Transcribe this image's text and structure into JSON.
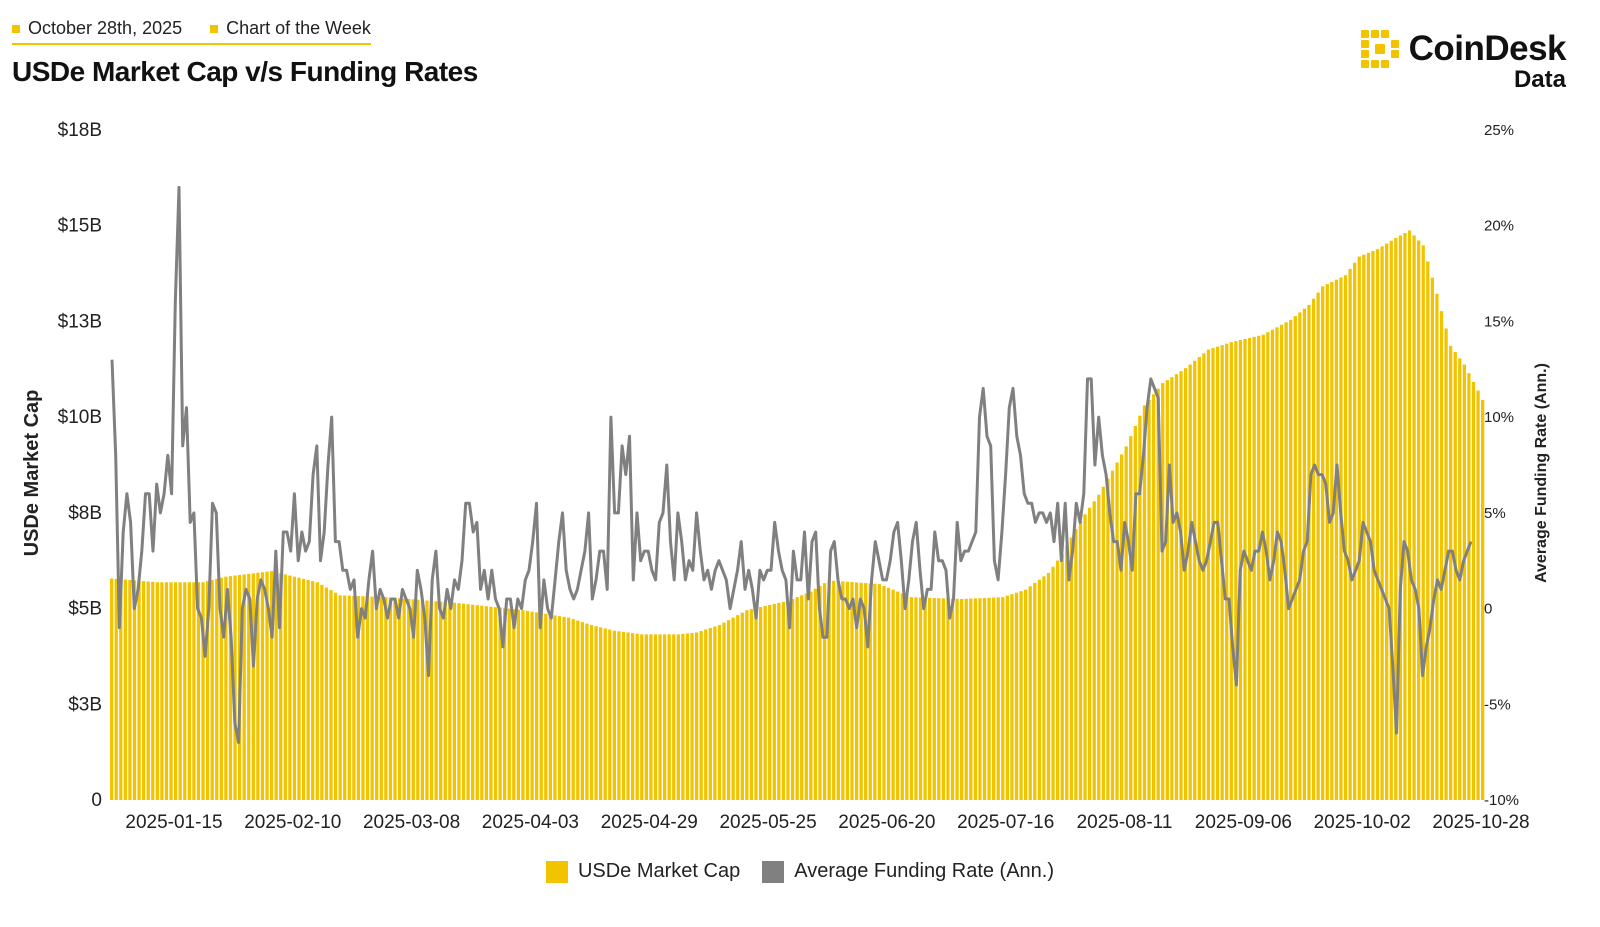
{
  "header": {
    "date": "October 28th, 2025",
    "series_label": "Chart of the Week",
    "title": "USDe Market Cap v/s Funding Rates"
  },
  "brand": {
    "name": "CoinDesk",
    "sub": "Data",
    "icon": "coindesk-logo-icon",
    "color": "#f2c400"
  },
  "colors": {
    "bar": "#f2c400",
    "line": "#808080",
    "text": "#222222"
  },
  "chart_data": {
    "type": "bar+line",
    "title": "USDe Market Cap v/s Funding Rates",
    "ylabel": "USDe Market Cap",
    "y2label": "Average Funding Rate (Ann.)",
    "ylim": [
      0,
      18
    ],
    "y2lim": [
      -10,
      25
    ],
    "yticks": [
      "0",
      "$3B",
      "$5B",
      "$8B",
      "$10B",
      "$13B",
      "$15B",
      "$18B"
    ],
    "y2ticks": [
      "-10%",
      "-5%",
      "0",
      "5%",
      "10%",
      "15%",
      "20%",
      "25%"
    ],
    "xticks": [
      "2025-01-15",
      "2025-02-10",
      "2025-03-08",
      "2025-04-03",
      "2025-04-29",
      "2025-05-25",
      "2025-06-20",
      "2025-07-16",
      "2025-08-11",
      "2025-09-06",
      "2025-10-02",
      "2025-10-28"
    ],
    "x_start": "2025-01-01",
    "x_end": "2025-10-28",
    "market_cap_keyframes_day_value_billions": [
      [
        0,
        5.95
      ],
      [
        10,
        5.85
      ],
      [
        20,
        5.85
      ],
      [
        25,
        6.0
      ],
      [
        35,
        6.15
      ],
      [
        45,
        5.85
      ],
      [
        50,
        5.5
      ],
      [
        60,
        5.45
      ],
      [
        75,
        5.3
      ],
      [
        90,
        5.1
      ],
      [
        100,
        4.9
      ],
      [
        105,
        4.7
      ],
      [
        110,
        4.55
      ],
      [
        116,
        4.45
      ],
      [
        124,
        4.45
      ],
      [
        128,
        4.5
      ],
      [
        133,
        4.7
      ],
      [
        139,
        5.1
      ],
      [
        148,
        5.35
      ],
      [
        153,
        5.6
      ],
      [
        157,
        5.9
      ],
      [
        168,
        5.8
      ],
      [
        175,
        5.45
      ],
      [
        186,
        5.4
      ],
      [
        195,
        5.45
      ],
      [
        200,
        5.65
      ],
      [
        205,
        6.1
      ],
      [
        208,
        6.6
      ],
      [
        212,
        7.5
      ],
      [
        216,
        8.2
      ],
      [
        222,
        9.5
      ],
      [
        226,
        10.6
      ],
      [
        230,
        11.2
      ],
      [
        235,
        11.6
      ],
      [
        240,
        12.1
      ],
      [
        245,
        12.3
      ],
      [
        252,
        12.5
      ],
      [
        258,
        12.9
      ],
      [
        262,
        13.3
      ],
      [
        265,
        13.8
      ],
      [
        270,
        14.1
      ],
      [
        273,
        14.6
      ],
      [
        277,
        14.8
      ],
      [
        281,
        15.1
      ],
      [
        284,
        15.3
      ],
      [
        287,
        14.9
      ],
      [
        290,
        13.6
      ],
      [
        293,
        12.2
      ],
      [
        296,
        11.7
      ],
      [
        299,
        11.0
      ],
      [
        301,
        10.5
      ]
    ],
    "funding_rate_pct": [
      13.0,
      8.0,
      -1.0,
      4.0,
      6.0,
      4.5,
      0.0,
      1.0,
      3.0,
      6.0,
      6.0,
      3.0,
      6.5,
      5.0,
      6.0,
      8.0,
      6.0,
      16.0,
      22.0,
      8.5,
      10.5,
      4.5,
      5.0,
      0.0,
      -0.5,
      -2.5,
      0.0,
      5.5,
      5.0,
      0.0,
      -1.5,
      1.0,
      -1.5,
      -6.0,
      -7.0,
      0.0,
      1.0,
      0.5,
      -3.0,
      0.5,
      1.5,
      1.0,
      0.0,
      -1.5,
      3.0,
      -1.0,
      4.0,
      4.0,
      3.0,
      6.0,
      2.5,
      4.0,
      3.0,
      3.5,
      7.0,
      8.5,
      2.5,
      4.0,
      7.5,
      10.0,
      3.5,
      3.5,
      2.0,
      2.0,
      1.0,
      1.5,
      -1.5,
      0.0,
      -0.5,
      1.5,
      3.0,
      0.0,
      1.0,
      0.5,
      -0.5,
      0.5,
      0.5,
      -0.5,
      1.0,
      0.5,
      0.0,
      -1.5,
      2.0,
      1.0,
      -0.5,
      -3.5,
      1.5,
      3.0,
      0.0,
      -0.5,
      1.0,
      0.0,
      1.5,
      1.0,
      2.5,
      5.5,
      5.5,
      4.0,
      4.5,
      1.0,
      2.0,
      0.5,
      2.0,
      0.5,
      0.0,
      -2.0,
      0.5,
      0.5,
      -1.0,
      0.5,
      0.0,
      1.5,
      2.0,
      3.5,
      5.5,
      -1.0,
      1.5,
      0.0,
      -0.5,
      1.5,
      3.5,
      5.0,
      2.0,
      1.0,
      0.5,
      1.0,
      2.0,
      3.0,
      5.0,
      0.5,
      1.5,
      3.0,
      3.0,
      1.0,
      10.0,
      5.0,
      5.0,
      8.5,
      7.0,
      9.0,
      1.5,
      5.0,
      2.5,
      3.0,
      3.0,
      2.0,
      1.5,
      4.5,
      5.0,
      7.5,
      3.5,
      1.5,
      5.0,
      3.5,
      1.5,
      2.5,
      2.0,
      5.0,
      3.0,
      1.5,
      2.0,
      1.0,
      2.0,
      2.5,
      2.0,
      1.5,
      0.0,
      1.0,
      2.0,
      3.5,
      1.0,
      2.0,
      1.0,
      -0.5,
      2.0,
      1.5,
      2.0,
      2.0,
      4.5,
      3.0,
      2.0,
      1.5,
      -1.0,
      3.0,
      1.5,
      1.5,
      4.0,
      0.5,
      3.5,
      4.0,
      0.0,
      -1.5,
      -1.5,
      3.0,
      3.5,
      1.5,
      0.5,
      0.5,
      0.0,
      0.5,
      -1.0,
      0.5,
      0.0,
      -2.0,
      1.5,
      3.5,
      2.5,
      1.5,
      1.5,
      2.5,
      4.0,
      4.5,
      2.5,
      0.0,
      1.5,
      3.5,
      4.5,
      2.0,
      0.0,
      1.0,
      1.0,
      4.0,
      2.5,
      2.5,
      2.0,
      -0.5,
      0.5,
      4.5,
      2.5,
      3.0,
      3.0,
      3.5,
      4.0,
      10.0,
      11.5,
      9.0,
      8.5,
      2.5,
      1.5,
      4.0,
      7.0,
      10.5,
      11.5,
      9.0,
      8.0,
      6.0,
      5.5,
      5.5,
      4.5,
      5.0,
      5.0,
      4.5,
      5.0,
      3.5,
      5.5,
      2.5,
      5.5,
      1.5,
      3.0,
      5.5,
      4.5,
      6.0,
      12.0,
      12.0,
      7.5,
      10.0,
      8.0,
      7.0,
      5.0,
      3.5,
      3.5,
      2.0,
      4.5,
      3.5,
      2.0,
      6.0,
      6.0,
      8.0,
      10.5,
      12.0,
      11.5,
      11.0,
      3.0,
      3.5,
      7.5,
      4.5,
      5.0,
      4.0,
      2.0,
      3.0,
      4.5,
      3.5,
      2.5,
      2.0,
      2.5,
      3.5,
      4.5,
      4.5,
      2.5,
      0.5,
      0.5,
      -2.0,
      -4.0,
      2.0,
      3.0,
      2.5,
      2.0,
      3.0,
      3.0,
      4.0,
      3.0,
      1.5,
      2.5,
      4.0,
      3.5,
      2.0,
      0.0,
      0.5,
      1.0,
      1.5,
      3.0,
      3.5,
      7.0,
      7.5,
      7.0,
      7.0,
      6.5,
      4.5,
      5.0,
      7.5,
      5.0,
      3.0,
      2.5,
      1.5,
      2.0,
      2.5,
      4.5,
      4.0,
      3.5,
      2.0,
      1.5,
      1.0,
      0.5,
      0.0,
      -3.0,
      -6.5,
      1.0,
      3.5,
      3.0,
      1.5,
      1.0,
      0.0,
      -3.5,
      -2.0,
      -1.0,
      0.5,
      1.5,
      1.0,
      2.0,
      3.0,
      3.0,
      2.0,
      1.5,
      2.5,
      3.0,
      3.5
    ]
  },
  "legend": {
    "items": [
      {
        "label": "USDe Market Cap",
        "color": "#f2c400"
      },
      {
        "label": "Average Funding Rate (Ann.)",
        "color": "#808080"
      }
    ]
  }
}
